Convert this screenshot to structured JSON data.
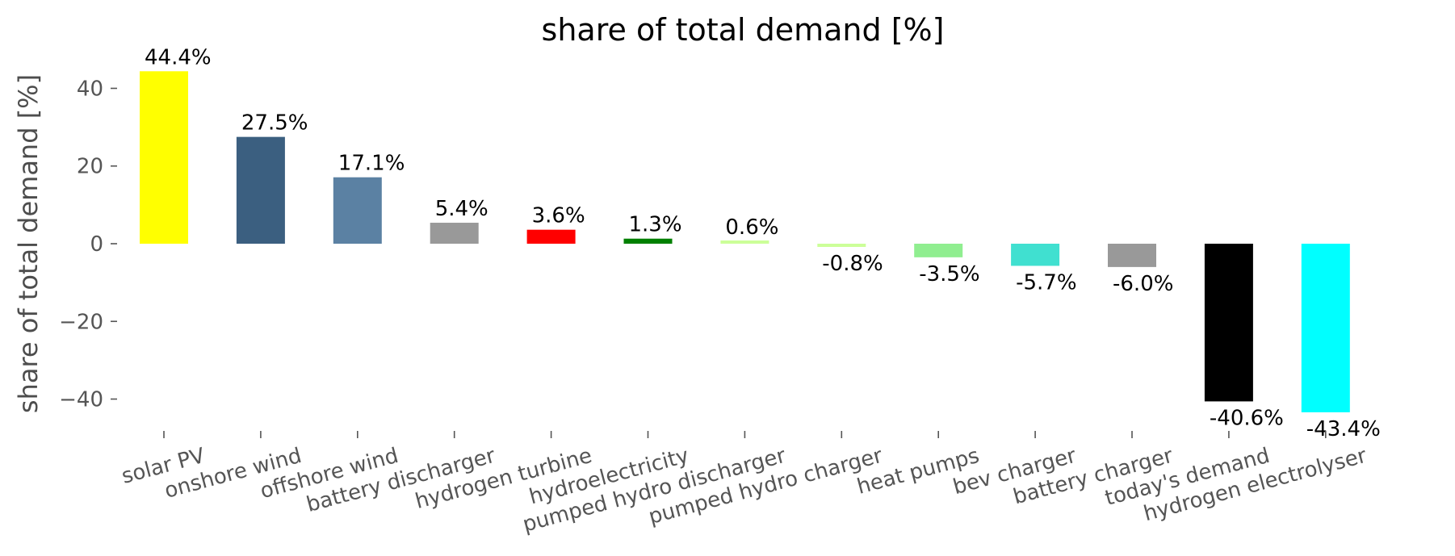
{
  "chart_data": {
    "type": "bar",
    "title": "share of total demand [%]",
    "xlabel": "",
    "ylabel": "share of total demand [%]",
    "ylim": [
      -48,
      48
    ],
    "yticks": [
      40,
      20,
      0,
      -20,
      -40
    ],
    "ytick_labels": [
      "40",
      "20",
      "0",
      "−20",
      "−40"
    ],
    "grid": false,
    "categories": [
      "solar PV",
      "onshore wind",
      "offshore wind",
      "battery discharger",
      "hydrogen turbine",
      "hydroelectricity",
      "pumped hydro discharger",
      "pumped hydro charger",
      "heat pumps",
      "bev charger",
      "battery charger",
      "today's demand",
      "hydrogen electrolyser"
    ],
    "values": [
      44.4,
      27.5,
      17.1,
      5.4,
      3.6,
      1.3,
      0.6,
      -0.8,
      -3.5,
      -5.7,
      -6.0,
      -40.6,
      -43.4
    ],
    "value_labels": [
      "44.4%",
      "27.5%",
      "17.1%",
      "5.4%",
      "3.6%",
      "1.3%",
      "0.6%",
      "-0.8%",
      "-3.5%",
      "-5.7%",
      "-6.0%",
      "-40.6%",
      "-43.4%"
    ],
    "colors": [
      "#ffff00",
      "#3b5f80",
      "#5b81a3",
      "#999999",
      "#ff0000",
      "#008000",
      "#ccff99",
      "#ccff99",
      "#90ee90",
      "#40e0d0",
      "#999999",
      "#000000",
      "#00ffff"
    ]
  }
}
